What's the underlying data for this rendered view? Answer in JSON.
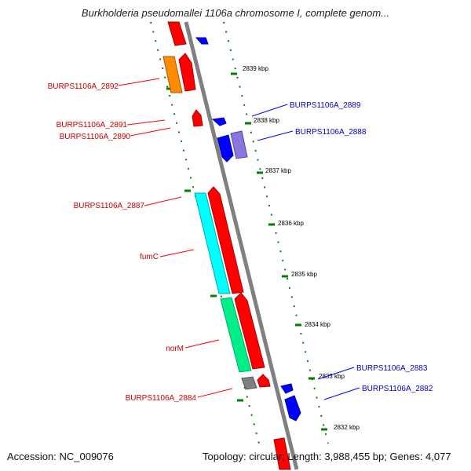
{
  "title": "Burkholderia pseudomallei 1106a chromosome I, complete genom...",
  "accession": "Accession: NC_009076",
  "topology": "Topology: circular; Length: 3,988,455 bp; Genes: 4,077",
  "colors": {
    "forward": "#ff0000",
    "reverse": "#0000ff",
    "backbone": "#808080",
    "tick": "#008000",
    "cyan_feature": "#00ffff",
    "green_feature": "#00ee88",
    "orange_feature": "#ff8c00",
    "purple_feature": "#8877dd"
  },
  "scale": {
    "unit": "kbp",
    "ticks": [
      "2839 kbp",
      "2838 kbp",
      "2837 kbp",
      "2836 kbp",
      "2835 kbp",
      "2834 kbp",
      "2833 kbp",
      "2832 kbp"
    ]
  },
  "genes": [
    {
      "label": "BURPS1106A_2892",
      "strand": "forward",
      "color": "#ff0000"
    },
    {
      "label": "BURPS1106A_2891",
      "strand": "forward",
      "color": "#ff0000"
    },
    {
      "label": "BURPS1106A_2890",
      "strand": "forward",
      "color": "#ff0000"
    },
    {
      "label": "BURPS1106A_2889",
      "strand": "reverse",
      "color": "#0000ff"
    },
    {
      "label": "BURPS1106A_2888",
      "strand": "reverse",
      "color": "#0000ff"
    },
    {
      "label": "BURPS1106A_2887",
      "strand": "forward",
      "color": "#ff0000"
    },
    {
      "label": "fumC",
      "strand": "forward",
      "color": "#ff0000"
    },
    {
      "label": "norM",
      "strand": "forward",
      "color": "#ff0000"
    },
    {
      "label": "BURPS1106A_2884",
      "strand": "forward",
      "color": "#ff0000"
    },
    {
      "label": "BURPS1106A_2883",
      "strand": "reverse",
      "color": "#0000ff"
    },
    {
      "label": "BURPS1106A_2882",
      "strand": "reverse",
      "color": "#0000ff"
    }
  ]
}
